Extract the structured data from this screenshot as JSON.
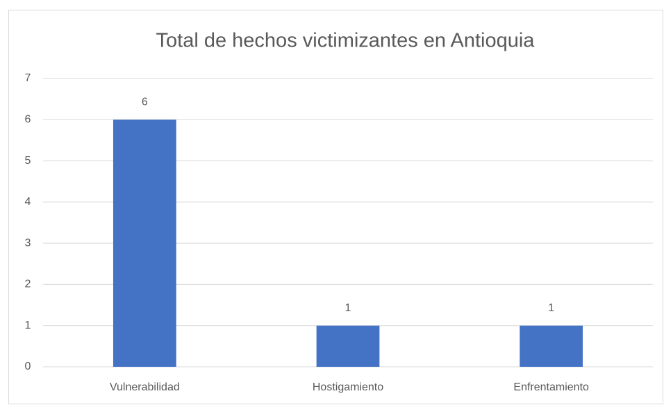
{
  "chart_data": {
    "type": "bar",
    "title": "Total de hechos victimizantes en Antioquia",
    "categories": [
      "Vulnerabilidad",
      "Hostigamiento",
      "Enfrentamiento"
    ],
    "values": [
      6,
      1,
      1
    ],
    "color": "#4472c4",
    "ylim": [
      0,
      7
    ],
    "yticks": [
      0,
      1,
      2,
      3,
      4,
      5,
      6,
      7
    ],
    "grid": true,
    "data_labels": true
  }
}
